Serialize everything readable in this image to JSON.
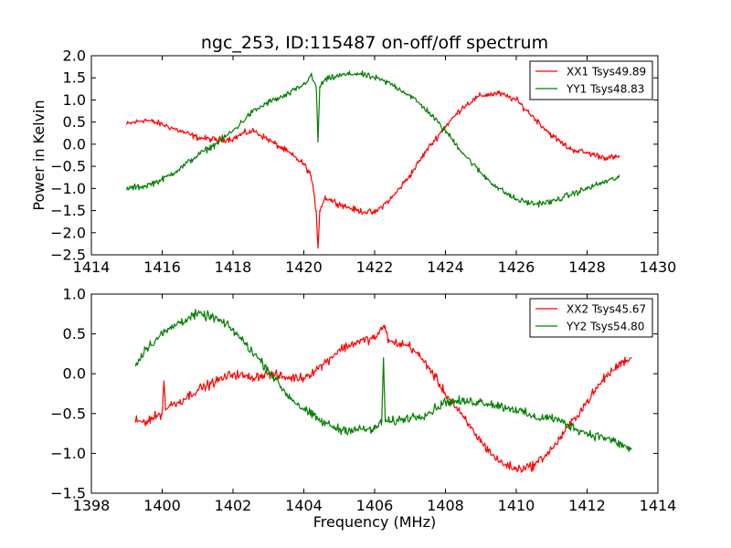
{
  "figure_title": "ngc_253, ID:115487 on-off/off spectrum",
  "chart_data": [
    {
      "type": "line",
      "title": "ngc_253, ID:115487 on-off/off spectrum",
      "xlabel": "",
      "ylabel": "Power in Kelvin",
      "xlim": [
        1414,
        1430
      ],
      "ylim": [
        -2.5,
        2.0
      ],
      "xticks": [
        1414,
        1416,
        1418,
        1420,
        1422,
        1424,
        1426,
        1428,
        1430
      ],
      "yticks": [
        -2.5,
        -2.0,
        -1.5,
        -1.0,
        -0.5,
        0.0,
        0.5,
        1.0,
        1.5,
        2.0
      ],
      "xtick_labels": [
        "1414",
        "1416",
        "1418",
        "1420",
        "1422",
        "1424",
        "1426",
        "1428",
        "1430"
      ],
      "ytick_labels": [
        "−2.5",
        "−2.0",
        "−1.5",
        "−1.0",
        "−0.5",
        "0.0",
        "0.5",
        "1.0",
        "1.5",
        "2.0"
      ],
      "grid": false,
      "legend_position": "top-right",
      "noise": 0.06,
      "series": [
        {
          "name": "XX1 Tsys49.89",
          "color": "#ff0000",
          "x": [
            1415.0,
            1415.5,
            1416.0,
            1416.5,
            1417.0,
            1417.5,
            1418.0,
            1418.3,
            1418.6,
            1419.0,
            1419.5,
            1420.0,
            1420.2,
            1420.35,
            1420.4,
            1420.45,
            1420.6,
            1421.0,
            1421.5,
            1422.0,
            1422.5,
            1423.0,
            1423.5,
            1424.0,
            1424.5,
            1425.0,
            1425.5,
            1426.0,
            1426.5,
            1427.0,
            1427.5,
            1428.0,
            1428.5,
            1428.9
          ],
          "y": [
            0.45,
            0.55,
            0.45,
            0.3,
            0.15,
            0.1,
            0.12,
            0.25,
            0.3,
            0.1,
            -0.15,
            -0.45,
            -0.7,
            -1.5,
            -2.35,
            -1.5,
            -1.2,
            -1.35,
            -1.5,
            -1.55,
            -1.2,
            -0.7,
            -0.1,
            0.4,
            0.85,
            1.1,
            1.15,
            1.0,
            0.6,
            0.2,
            -0.1,
            -0.2,
            -0.3,
            -0.3
          ]
        },
        {
          "name": "YY1 Tsys48.83",
          "color": "#008000",
          "x": [
            1415.0,
            1415.5,
            1416.0,
            1416.5,
            1417.0,
            1417.5,
            1418.0,
            1418.5,
            1419.0,
            1419.5,
            1420.0,
            1420.2,
            1420.35,
            1420.4,
            1420.45,
            1420.6,
            1421.0,
            1421.5,
            1422.0,
            1422.5,
            1423.0,
            1423.5,
            1424.0,
            1424.5,
            1425.0,
            1425.5,
            1426.0,
            1426.5,
            1427.0,
            1427.5,
            1428.0,
            1428.5,
            1428.9
          ],
          "y": [
            -1.0,
            -0.95,
            -0.8,
            -0.55,
            -0.25,
            0.0,
            0.3,
            0.7,
            0.95,
            1.1,
            1.35,
            1.55,
            1.3,
            0.05,
            1.3,
            1.45,
            1.55,
            1.6,
            1.5,
            1.35,
            1.1,
            0.75,
            0.3,
            -0.2,
            -0.65,
            -1.0,
            -1.25,
            -1.35,
            -1.3,
            -1.15,
            -1.0,
            -0.85,
            -0.75
          ]
        }
      ]
    },
    {
      "type": "line",
      "title": "",
      "xlabel": "Frequency (MHz)",
      "ylabel": "",
      "xlim": [
        1398,
        1414
      ],
      "ylim": [
        -1.5,
        1.0
      ],
      "xticks": [
        1398,
        1400,
        1402,
        1404,
        1406,
        1408,
        1410,
        1412,
        1414
      ],
      "yticks": [
        -1.5,
        -1.0,
        -0.5,
        0.0,
        0.5,
        1.0
      ],
      "xtick_labels": [
        "1398",
        "1400",
        "1402",
        "1404",
        "1406",
        "1408",
        "1410",
        "1412",
        "1414"
      ],
      "ytick_labels": [
        "−1.5",
        "−1.0",
        "−0.5",
        "0.0",
        "0.5",
        "1.0"
      ],
      "grid": false,
      "legend_position": "top-right",
      "noise": 0.05,
      "series": [
        {
          "name": "XX2 Tsys45.67",
          "color": "#ff0000",
          "x": [
            1399.25,
            1399.5,
            1400.0,
            1400.05,
            1400.1,
            1400.2,
            1400.5,
            1401.0,
            1401.5,
            1402.0,
            1402.5,
            1403.0,
            1403.5,
            1404.0,
            1404.5,
            1405.0,
            1405.5,
            1406.0,
            1406.2,
            1406.3,
            1406.4,
            1407.0,
            1407.5,
            1408.0,
            1408.5,
            1409.0,
            1409.5,
            1410.0,
            1410.5,
            1411.0,
            1411.5,
            1412.0,
            1412.5,
            1413.0,
            1413.25
          ],
          "y": [
            -0.6,
            -0.6,
            -0.5,
            -0.1,
            -0.45,
            -0.4,
            -0.35,
            -0.2,
            -0.1,
            0.0,
            -0.05,
            0.0,
            -0.05,
            -0.05,
            0.1,
            0.3,
            0.4,
            0.45,
            0.55,
            0.6,
            0.4,
            0.35,
            0.1,
            -0.25,
            -0.55,
            -0.85,
            -1.1,
            -1.2,
            -1.15,
            -0.95,
            -0.65,
            -0.35,
            -0.05,
            0.15,
            0.2
          ]
        },
        {
          "name": "YY2 Tsys54.80",
          "color": "#008000",
          "x": [
            1399.25,
            1399.5,
            1400.0,
            1400.5,
            1401.0,
            1401.5,
            1402.0,
            1402.5,
            1403.0,
            1403.5,
            1404.0,
            1404.5,
            1405.0,
            1405.5,
            1406.0,
            1406.2,
            1406.25,
            1406.3,
            1406.5,
            1407.0,
            1407.5,
            1408.0,
            1408.5,
            1409.0,
            1409.5,
            1410.0,
            1410.5,
            1411.0,
            1411.5,
            1412.0,
            1412.5,
            1413.0,
            1413.25
          ],
          "y": [
            0.1,
            0.3,
            0.5,
            0.65,
            0.75,
            0.7,
            0.55,
            0.3,
            0.05,
            -0.25,
            -0.45,
            -0.6,
            -0.7,
            -0.7,
            -0.7,
            -0.6,
            0.2,
            -0.6,
            -0.6,
            -0.55,
            -0.5,
            -0.35,
            -0.35,
            -0.35,
            -0.4,
            -0.45,
            -0.55,
            -0.55,
            -0.65,
            -0.75,
            -0.8,
            -0.9,
            -0.95
          ]
        }
      ]
    }
  ]
}
